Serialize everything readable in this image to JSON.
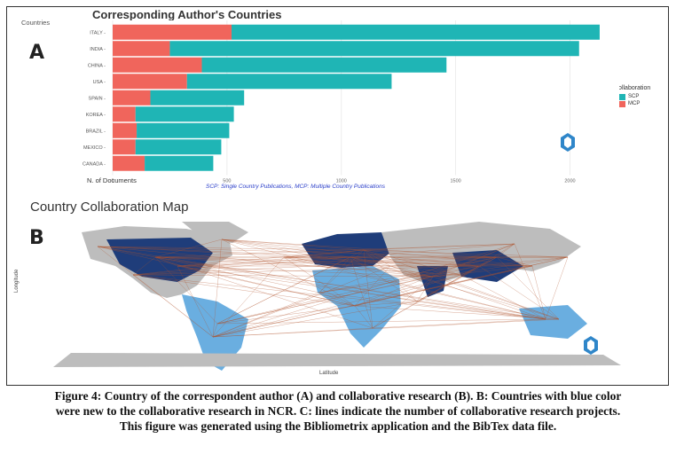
{
  "figure": {
    "panel_a_label": "A",
    "panel_b_label": "B",
    "caption_lines": [
      "Figure 4: Country of the correspondent author (A) and collaborative research (B). B: Countries with blue color",
      "were new to the collaborative research in NCR. C: lines indicate the number of collaborative research projects.",
      "This figure was generated using the Bibliometrix application and the BibTex data file."
    ]
  },
  "chart_a": {
    "title": "Corresponding Author's Countries",
    "ylabel": "Countries",
    "xlabel": "N. of Documents",
    "note": "SCP: Single Country Publications, MCP: Multiple Country Publications",
    "legend_title": "Collaboration",
    "colors": {
      "SCP": "#1fb5b5",
      "MCP": "#f0655c"
    }
  },
  "chart_data": {
    "type": "bar",
    "orientation": "horizontal",
    "stacked": true,
    "categories": [
      "ITALY",
      "INDIA",
      "CHINA",
      "USA",
      "SPAIN",
      "KOREA",
      "BRAZIL",
      "MEXICO",
      "CANADA"
    ],
    "series": [
      {
        "name": "MCP",
        "values": [
          520,
          250,
          390,
          325,
          165,
          100,
          105,
          100,
          140
        ]
      },
      {
        "name": "SCP",
        "values": [
          1610,
          1790,
          1070,
          895,
          410,
          430,
          405,
          375,
          300
        ]
      }
    ],
    "xlim": [
      0,
      2200
    ],
    "x_ticks": [
      "0",
      "500",
      "1000",
      "1500",
      "2000"
    ],
    "xlabel": "N. of Documents",
    "ylabel": "Countries",
    "legend_position": "right"
  },
  "map_b": {
    "title": "Country Collaboration Map",
    "ylabel": "Longitude",
    "xlabel": "Latitude",
    "colors": {
      "land": "#bdbdbd",
      "light_blue": "#6aaee0",
      "dark_blue": "#1f3d7a",
      "line": "#b0522a"
    }
  }
}
